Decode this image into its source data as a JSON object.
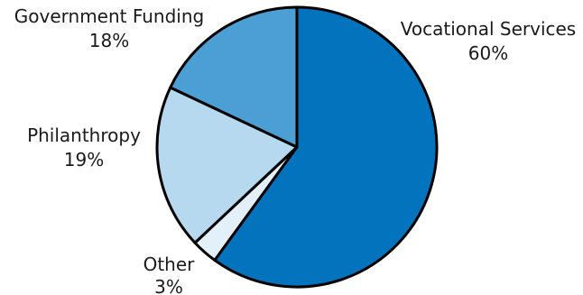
{
  "chart_data": {
    "type": "pie",
    "title": "",
    "slices": [
      {
        "label": "Vocational Services",
        "value": 60,
        "value_label": "60%",
        "color": "#0473bd"
      },
      {
        "label": "Other",
        "value": 3,
        "value_label": "3%",
        "color": "#e3f0f9"
      },
      {
        "label": "Philanthropy",
        "value": 19,
        "value_label": "19%",
        "color": "#b6d9ef"
      },
      {
        "label": "Government Funding",
        "value": 18,
        "value_label": "18%",
        "color": "#4b9fd5"
      }
    ],
    "start": "12 o'clock",
    "direction": "clockwise",
    "legend": "none",
    "label_placement": "outside"
  }
}
